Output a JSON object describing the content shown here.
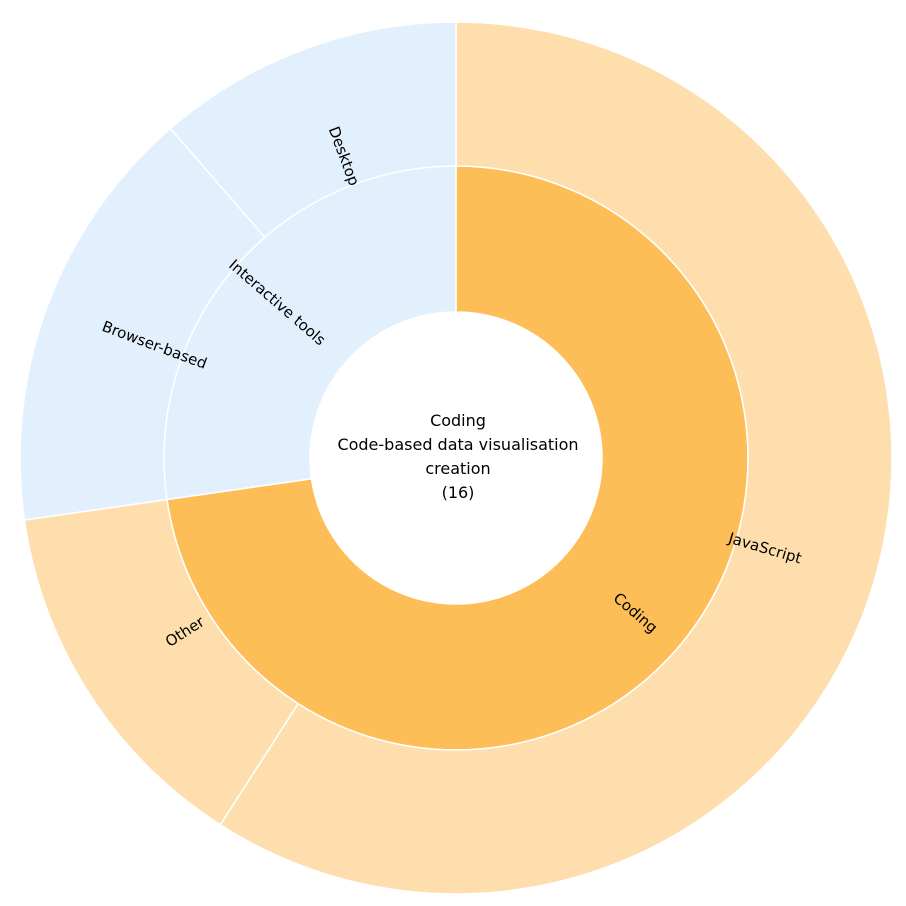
{
  "chart_data": {
    "type": "sunburst",
    "inner": [
      {
        "name": "Coding",
        "value": 16,
        "color": "#fdbe57"
      },
      {
        "name": "Interactive tools",
        "value": 6,
        "color": "#e2f0fd"
      }
    ],
    "outer": [
      {
        "name": "JavaScript",
        "parent": "Coding",
        "value": 13,
        "color": "#fddeac"
      },
      {
        "name": "Other",
        "parent": "Coding",
        "value": 3,
        "color": "#fddeac"
      },
      {
        "name": "Browser-based",
        "parent": "Interactive tools",
        "value": 3.5,
        "color": "#e2f0fd"
      },
      {
        "name": "Desktop",
        "parent": "Interactive tools",
        "value": 2.5,
        "color": "#e2f0fd"
      }
    ],
    "center": {
      "line1": "Coding",
      "line2": "Code-based data visualisation",
      "line3": "creation",
      "line4": "(16)"
    }
  }
}
